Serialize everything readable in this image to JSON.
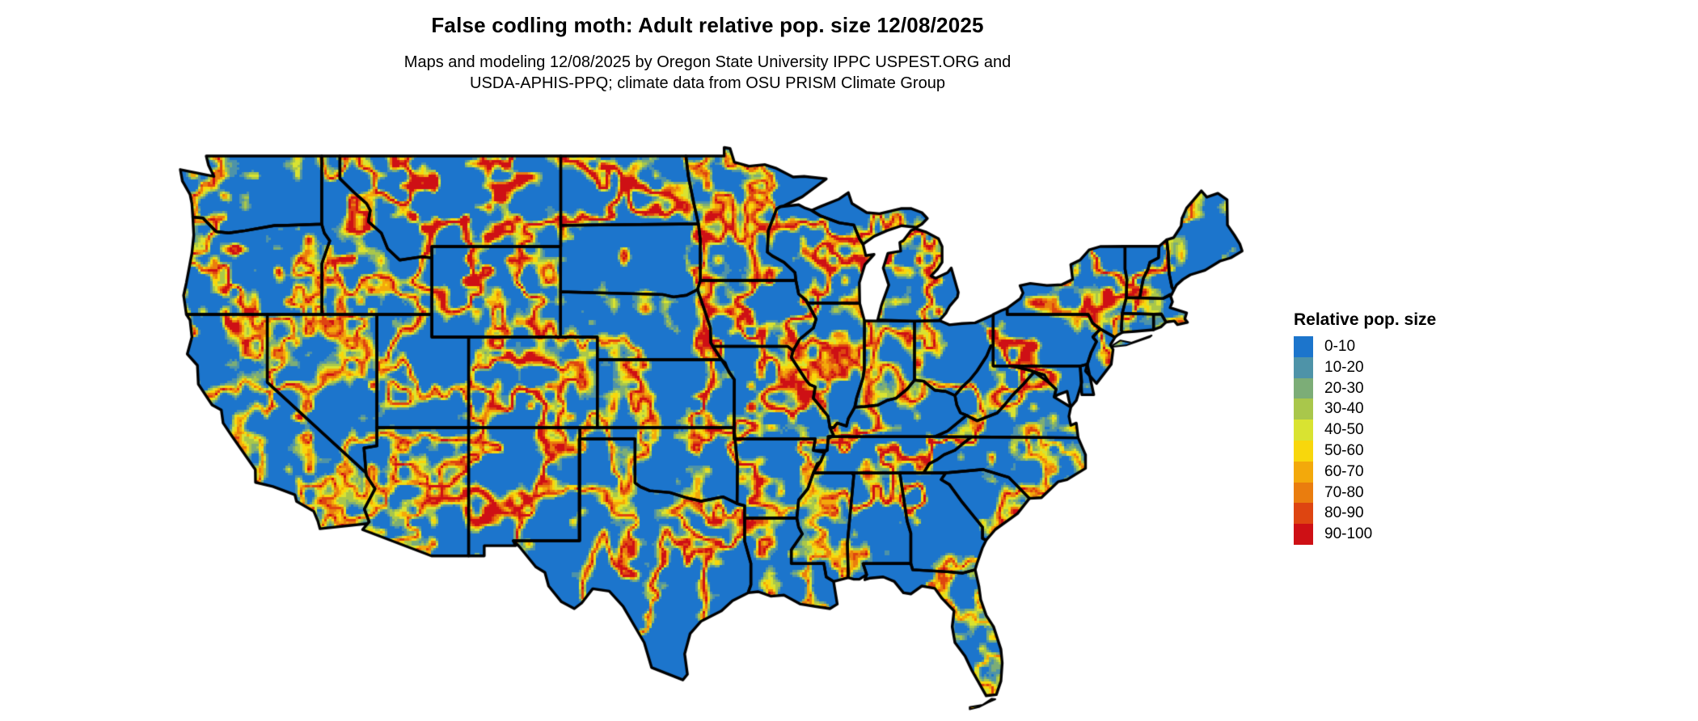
{
  "header": {
    "title": "False codling moth: Adult relative pop. size 12/08/2025",
    "subtitle1": "Maps and modeling 12/08/2025 by Oregon State University IPPC USPEST.ORG and",
    "subtitle2": "USDA-APHIS-PPQ; climate data from OSU PRISM Climate Group"
  },
  "legend": {
    "title": "Relative pop. size",
    "items": [
      {
        "label": "0-10",
        "color": "#1c75cc"
      },
      {
        "label": "10-20",
        "color": "#4e93a8"
      },
      {
        "label": "20-30",
        "color": "#7cad77"
      },
      {
        "label": "30-40",
        "color": "#a9c74b"
      },
      {
        "label": "40-50",
        "color": "#d9e331"
      },
      {
        "label": "50-60",
        "color": "#f8d70c"
      },
      {
        "label": "60-70",
        "color": "#f3a90b"
      },
      {
        "label": "70-80",
        "color": "#ea7d0e"
      },
      {
        "label": "80-90",
        "color": "#de4511"
      },
      {
        "label": "90-100",
        "color": "#ce1015"
      }
    ]
  },
  "map": {
    "background": "#ffffff",
    "border_color": "#000000"
  }
}
